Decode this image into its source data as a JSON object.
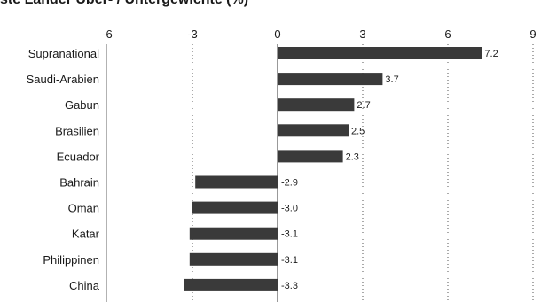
{
  "chart_data": {
    "type": "bar",
    "orientation": "horizontal",
    "title": "ste Länder Über- / Untergewichte (%)",
    "categories": [
      "Supranational",
      "Saudi-Arabien",
      "Gabun",
      "Brasilien",
      "Ecuador",
      "Bahrain",
      "Oman",
      "Katar",
      "Philippinen",
      "China"
    ],
    "values": [
      7.2,
      3.7,
      2.7,
      2.5,
      2.3,
      -2.9,
      -3.0,
      -3.1,
      -3.1,
      -3.3
    ],
    "value_labels": [
      "7.2",
      "3.7",
      "2.7",
      "2.5",
      "2.3",
      "-2.9",
      "-3.0",
      "-3.1",
      "-3.1",
      "-3.3"
    ],
    "xlim": [
      -6,
      9
    ],
    "xticks": [
      -6,
      -3,
      0,
      3,
      6,
      9
    ],
    "xtick_labels": [
      "-6",
      "-3",
      "0",
      "3",
      "6",
      "9"
    ],
    "xaxis_position": "top",
    "grid": "vertical dotted",
    "bar_color": "#3a3a3a"
  }
}
